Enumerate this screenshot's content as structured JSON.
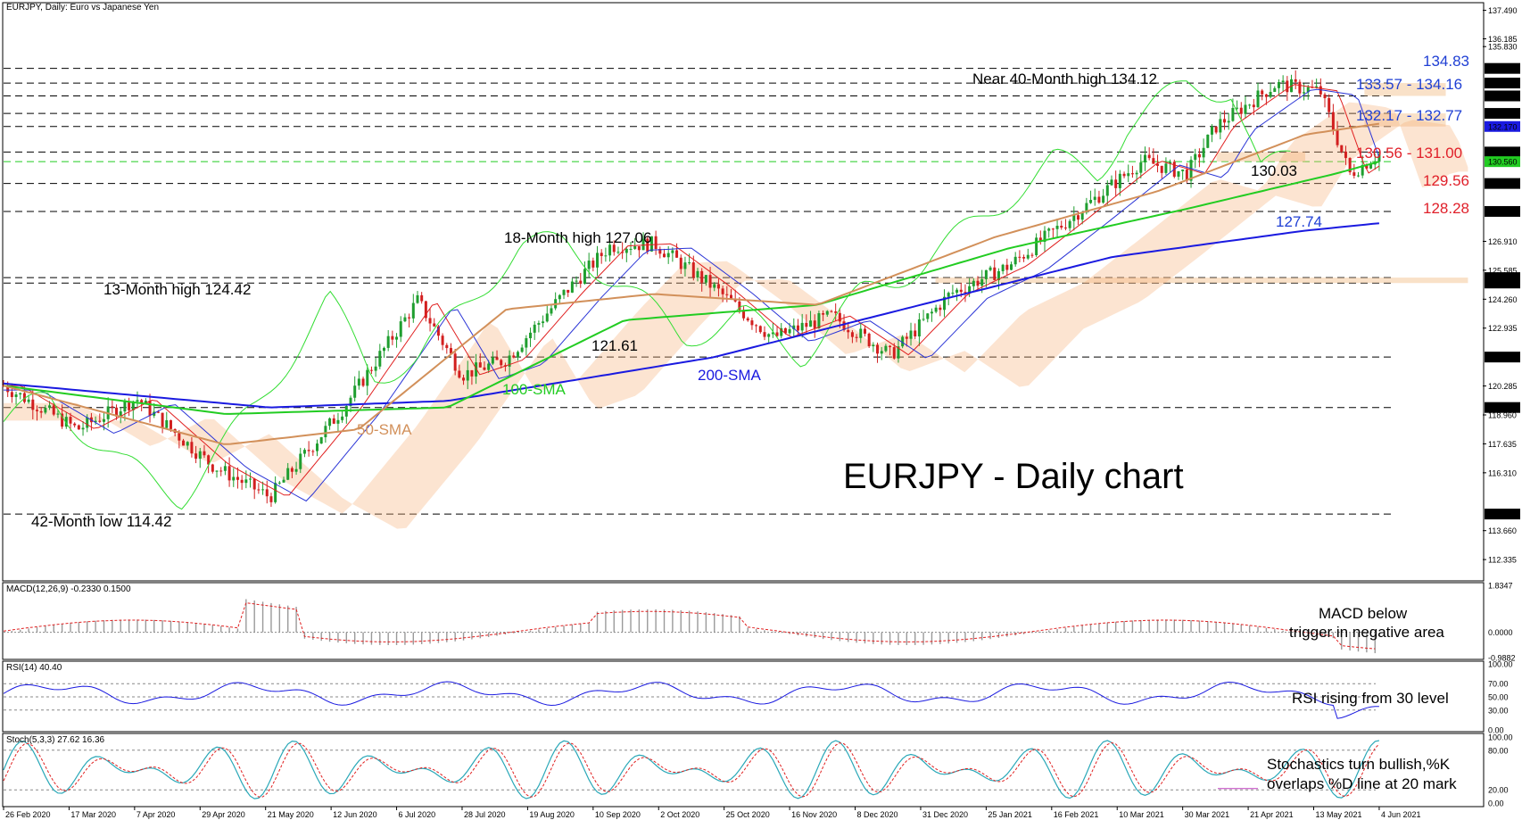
{
  "chart_data": [
    {
      "type": "line",
      "panel": "price",
      "header": "EURJPY, Daily: Euro vs Japanese Yen",
      "watermark_title": "EURJPY - Daily chart",
      "x_ticks": [
        "26 Feb 2020",
        "17 Mar 2020",
        "7 Apr 2020",
        "29 Apr 2020",
        "21 May 2020",
        "12 Jun 2020",
        "6 Jul 2020",
        "28 Jul 2020",
        "19 Aug 2020",
        "10 Sep 2020",
        "2 Oct 2020",
        "25 Oct 2020",
        "16 Nov 2020",
        "8 Dec 2020",
        "31 Dec 2020",
        "25 Jan 2021",
        "16 Feb 2021",
        "10 Mar 2021",
        "30 Mar 2021",
        "21 Apr 2021",
        "13 May 2021",
        "4 Jun 2021"
      ],
      "y_axis_labels": [
        "137.490",
        "136.185",
        "135.830",
        "134.830",
        "134.160",
        "133.570",
        "132.770",
        "132.170",
        "131.000",
        "130.560",
        "129.560",
        "128.280",
        "126.910",
        "125.585",
        "125.250",
        "125.000",
        "124.260",
        "122.935",
        "121.610",
        "120.285",
        "119.300",
        "118.960",
        "117.635",
        "116.310",
        "114.420",
        "113.660",
        "112.335"
      ],
      "ylim": [
        111.4,
        137.8
      ],
      "horizontal_levels": [
        134.83,
        134.16,
        133.57,
        132.77,
        132.17,
        131.0,
        130.56,
        129.56,
        128.28,
        125.25,
        125.0,
        121.61,
        119.3,
        114.42
      ],
      "level_labels": [
        {
          "text": "134.83",
          "color": "#1f3fd4",
          "value": 134.83
        },
        {
          "text": "133.57 - 134.16",
          "color": "#1f3fd4",
          "value": 133.86
        },
        {
          "text": "132.17 - 132.77",
          "color": "#1f3fd4",
          "value": 132.47
        },
        {
          "text": "130.56 - 131.00",
          "color": "#e0202a",
          "value": 130.78
        },
        {
          "text": "129.56",
          "color": "#e0202a",
          "value": 129.56
        },
        {
          "text": "128.28",
          "color": "#e0202a",
          "value": 128.28
        },
        {
          "text": "127.74",
          "color": "#1f3fd4",
          "value": 127.74
        }
      ],
      "annotations": [
        {
          "text": "Near 40-Month high 134.12",
          "value": 134.12
        },
        {
          "text": "18-Month high 127.06",
          "value": 127.06
        },
        {
          "text": "13-Month high 124.42",
          "value": 124.42
        },
        {
          "text": "121.61",
          "value": 121.61
        },
        {
          "text": "42-Month low 114.42",
          "value": 114.42
        },
        {
          "text": "130.03",
          "value": 130.03
        },
        {
          "text": "100-SMA",
          "color": "#22cc22"
        },
        {
          "text": "200-SMA",
          "color": "#1a1ae0"
        },
        {
          "text": "50-SMA",
          "color": "#d2905a"
        }
      ],
      "series": [
        {
          "name": "200-SMA",
          "color": "#1a1ae0",
          "x": [
            0,
            0.18,
            0.3,
            0.48,
            0.62,
            0.75,
            0.88,
            0.93
          ],
          "values": [
            120.4,
            119.3,
            119.6,
            121.6,
            124.0,
            126.2,
            127.4,
            127.74
          ]
        },
        {
          "name": "100-SMA",
          "color": "#22cc22",
          "x": [
            0,
            0.15,
            0.3,
            0.42,
            0.55,
            0.68,
            0.8,
            0.9,
            0.93
          ],
          "values": [
            120.3,
            119.0,
            119.3,
            123.3,
            124.0,
            126.6,
            128.4,
            130.0,
            130.56
          ]
        },
        {
          "name": "50-SMA",
          "color": "#d2905a",
          "x": [
            0,
            0.15,
            0.24,
            0.34,
            0.44,
            0.55,
            0.67,
            0.78,
            0.88,
            0.93
          ],
          "values": [
            120.3,
            117.6,
            118.3,
            123.8,
            124.5,
            124.0,
            127.1,
            129.2,
            131.8,
            132.3
          ]
        }
      ],
      "price_path": {
        "x": [
          0,
          0.05,
          0.09,
          0.14,
          0.18,
          0.23,
          0.28,
          0.31,
          0.34,
          0.38,
          0.41,
          0.44,
          0.48,
          0.52,
          0.56,
          0.6,
          0.64,
          0.68,
          0.72,
          0.77,
          0.8,
          0.82,
          0.86,
          0.89,
          0.91,
          0.93
        ],
        "values": [
          120.3,
          118.3,
          119.7,
          116.7,
          115.2,
          119.3,
          124.2,
          120.8,
          121.5,
          124.6,
          126.7,
          126.8,
          124.8,
          122.5,
          123.5,
          121.7,
          124.5,
          125.8,
          127.9,
          130.6,
          130.0,
          132.2,
          134.1,
          133.8,
          130.0,
          130.9
        ]
      }
    },
    {
      "type": "bar",
      "panel": "macd",
      "header": "MACD(12,26,9) -0.2330 0.1500",
      "y_axis_labels": [
        "1.8347",
        "0.0000",
        "-0.9882"
      ],
      "ylim": [
        -0.9882,
        1.8347
      ],
      "note": "MACD below trigger in negative area"
    },
    {
      "type": "line",
      "panel": "rsi",
      "header": "RSI(14) 40.40",
      "y_axis_labels": [
        "100.00",
        "70.00",
        "50.00",
        "30.00",
        "0.00"
      ],
      "ylim": [
        0,
        100
      ],
      "levels": [
        70,
        50,
        30
      ],
      "note": "RSI rising from 30 level"
    },
    {
      "type": "line",
      "panel": "stochastic",
      "header": "Stoch(5,3,3) 27.62 16.36",
      "y_axis_labels": [
        "100.00",
        "80.00",
        "20.00",
        "0.00"
      ],
      "ylim": [
        0,
        100
      ],
      "levels": [
        80,
        20
      ],
      "note_line1": "Stochastics turn bullish,%K",
      "note_line2": "overlaps %D line at 20 mark"
    }
  ]
}
